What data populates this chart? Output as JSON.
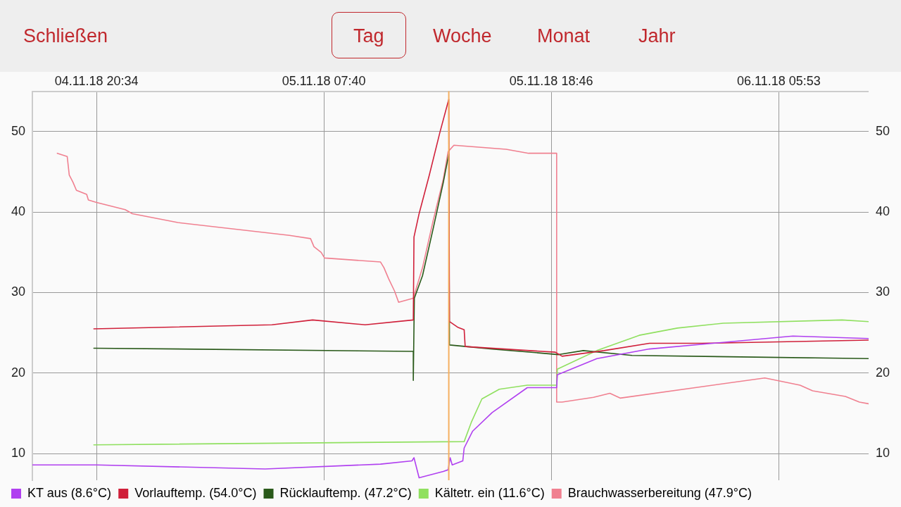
{
  "chart_data": {
    "type": "line",
    "annotations": [
      "Schließen",
      "Tag",
      "Woche",
      "Monat",
      "Jahr"
    ],
    "xlim": [
      "--11-04T17:26",
      "--11-06T10:16"
    ],
    "xticks": [
      {
        "value": "--11-04T20:34",
        "label": "04.11.18 20:34"
      },
      {
        "value": "--11-05T07:40",
        "label": "05.11.18 07:40"
      },
      {
        "value": "--11-05T18:46",
        "label": "05.11.18 18:46"
      },
      {
        "value": "--11-06T05:53",
        "label": "06.11.18 05:53"
      }
    ],
    "ylim": [
      6.7,
      55
    ],
    "yticks": [
      10,
      20,
      30,
      40,
      50
    ],
    "y2lim": [
      6.7,
      55
    ],
    "y2ticks": [
      10,
      20,
      30,
      40,
      50
    ],
    "grid": true,
    "legend": "bottom left",
    "marker": "none",
    "line_style": "solid",
    "ref_lines": [
      {
        "axis": "x",
        "value": "--11-05T13:46",
        "color": "#f5b060"
      }
    ],
    "series": [
      {
        "name": "KT aus (8.6°C)",
        "color": "#b040f0",
        "x": [
          "--11-04T17:26",
          "--11-04T20:34",
          "--11-05T04:48",
          "--11-05T10:26",
          "--11-05T11:58",
          "--11-05T12:04",
          "--11-05T12:19",
          "--11-05T13:30",
          "--11-05T13:44",
          "--11-05T13:50",
          "--11-05T13:56",
          "--11-05T14:27",
          "--11-05T14:31",
          "--11-05T14:56",
          "--11-05T15:53",
          "--11-05T17:36",
          "--11-05T19:02",
          "--11-05T19:04",
          "--11-05T21:00",
          "--11-05T23:34",
          "--11-06T06:34",
          "--11-06T10:16"
        ],
        "values": [
          8.6,
          8.6,
          8.1,
          8.7,
          9.1,
          9.5,
          7.0,
          7.8,
          8.0,
          9.5,
          8.6,
          9.1,
          10.7,
          12.8,
          15.1,
          18.2,
          18.2,
          19.8,
          21.8,
          23.0,
          24.6,
          24.3
        ]
      },
      {
        "name": "Vorlauftemp. (54.0°C)",
        "color": "#d0203a",
        "x": [
          "--11-04T20:26",
          "--11-05T05:08",
          "--11-05T07:07",
          "--11-05T09:41",
          "--11-05T12:02",
          "--11-05T12:04",
          "--11-05T12:19",
          "--11-05T12:49",
          "--11-05T13:20",
          "--11-05T13:46",
          "--11-05T13:48",
          "--11-05T14:12",
          "--11-05T14:31",
          "--11-05T14:34",
          "--11-05T18:58",
          "--11-05T19:18",
          "--11-05T21:21",
          "--11-05T23:34",
          "--11-06T02:08",
          "--11-06T10:16"
        ],
        "values": [
          25.5,
          26.0,
          26.6,
          26.0,
          26.6,
          36.9,
          39.8,
          44.6,
          49.9,
          54.0,
          26.4,
          25.7,
          25.4,
          23.3,
          22.6,
          22.1,
          22.8,
          23.7,
          23.7,
          24.1
        ]
      },
      {
        "name": "Rücklauftemp. (47.2°C)",
        "color": "#2a5a1a",
        "x": [
          "--11-04T20:26",
          "--11-05T12:02",
          "--11-05T12:02",
          "--11-05T12:05",
          "--11-05T12:29",
          "--11-05T13:00",
          "--11-05T13:30",
          "--11-05T13:46",
          "--11-05T13:48",
          "--11-05T15:53",
          "--11-05T19:08",
          "--11-05T20:20",
          "--11-05T22:43",
          "--11-06T10:16"
        ],
        "values": [
          23.1,
          22.7,
          19.1,
          29.3,
          32.1,
          37.9,
          43.7,
          47.2,
          23.5,
          23.0,
          22.3,
          22.8,
          22.2,
          21.8
        ]
      },
      {
        "name": "Kältetr. ein (11.6°C)",
        "color": "#90e060",
        "x": [
          "--11-04T20:26",
          "--11-05T14:31",
          "--11-05T14:52",
          "--11-05T15:23",
          "--11-05T16:14",
          "--11-05T17:36",
          "--11-05T19:02",
          "--11-05T19:04",
          "--11-05T21:00",
          "--11-05T23:04",
          "--11-06T00:56",
          "--11-06T03:10",
          "--11-06T08:58",
          "--11-06T10:16"
        ],
        "values": [
          11.1,
          11.5,
          13.9,
          16.8,
          18.0,
          18.5,
          18.5,
          20.5,
          22.8,
          24.7,
          25.6,
          26.2,
          26.6,
          26.4
        ]
      },
      {
        "name": "Brauchwasserbereitung (47.9°C)",
        "color": "#f08090",
        "x": [
          "--11-04T18:39",
          "--11-04T19:08",
          "--11-04T19:14",
          "--11-04T19:25",
          "--11-04T19:35",
          "--11-04T20:05",
          "--11-04T20:10",
          "--11-04T20:34",
          "--11-04T21:58",
          "--11-04T22:19",
          "--11-05T00:32",
          "--11-05T05:59",
          "--11-05T07:01",
          "--11-05T07:11",
          "--11-05T07:32",
          "--11-05T07:42",
          "--11-05T10:26",
          "--11-05T10:36",
          "--11-05T10:50",
          "--11-05T11:07",
          "--11-05T11:19",
          "--11-05T12:02",
          "--11-05T12:29",
          "--11-05T13:00",
          "--11-05T13:30",
          "--11-05T13:44",
          "--11-05T14:01",
          "--11-05T16:34",
          "--11-05T17:40",
          "--11-05T19:02",
          "--11-05T19:02",
          "--11-05T19:18",
          "--11-05T20:50",
          "--11-05T21:38",
          "--11-05T22:08",
          "--11-06T05:12",
          "--11-06T06:55",
          "--11-06T07:32",
          "--11-06T09:08",
          "--11-06T09:49",
          "--11-06T10:16"
        ],
        "values": [
          47.3,
          46.9,
          44.6,
          43.7,
          42.7,
          42.2,
          41.5,
          41.2,
          40.3,
          39.8,
          38.7,
          37.1,
          36.7,
          35.7,
          35.0,
          34.3,
          33.8,
          33.1,
          31.7,
          30.2,
          28.8,
          29.3,
          33.1,
          38.9,
          44.1,
          47.5,
          48.3,
          47.8,
          47.3,
          47.3,
          16.4,
          16.4,
          17.0,
          17.5,
          16.9,
          19.4,
          18.5,
          17.8,
          17.1,
          16.4,
          16.2
        ]
      }
    ]
  }
}
